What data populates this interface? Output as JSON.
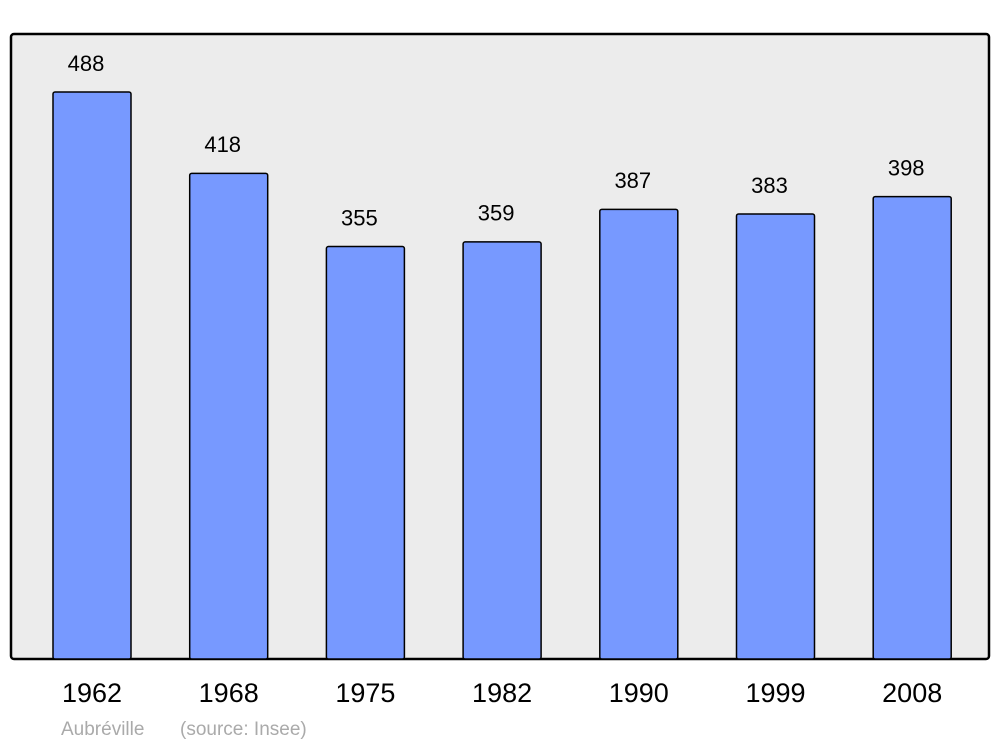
{
  "chart_data": {
    "type": "bar",
    "categories": [
      "1962",
      "1968",
      "1975",
      "1982",
      "1990",
      "1999",
      "2008"
    ],
    "values": [
      488,
      418,
      355,
      359,
      387,
      383,
      398
    ],
    "color": "#7799ff",
    "caption": "Aubréville",
    "source": "(source: Insee)"
  }
}
